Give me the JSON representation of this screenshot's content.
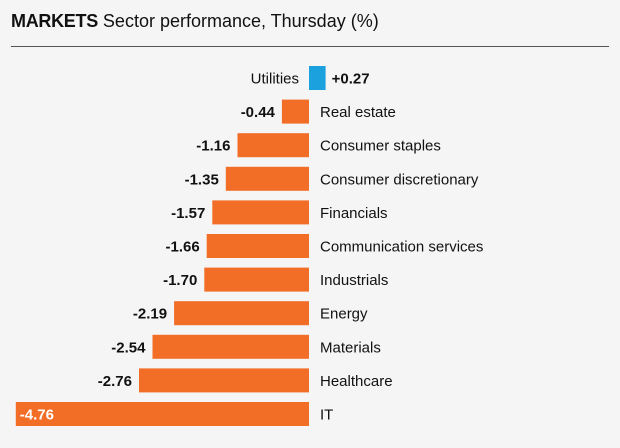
{
  "header": {
    "kicker": "MARKETS",
    "subtitle": "Sector performance, Thursday (%)"
  },
  "colors": {
    "positive": "#1aa1de",
    "negative": "#f26d26",
    "text": "#111111",
    "inside_label": "#ffffff"
  },
  "chart_data": {
    "type": "bar",
    "orientation": "horizontal",
    "title": "Sector performance, Thursday (%)",
    "categories": [
      "Utilities",
      "Real estate",
      "Consumer staples",
      "Consumer discretionary",
      "Financials",
      "Communication services",
      "Industrials",
      "Energy",
      "Materials",
      "Healthcare",
      "IT"
    ],
    "value_labels": [
      "+0.27",
      "-0.44",
      "-1.16",
      "-1.35",
      "-1.57",
      "-1.66",
      "-1.70",
      "-2.19",
      "-2.54",
      "-2.76",
      "-4.76"
    ],
    "values": [
      0.27,
      -0.44,
      -1.16,
      -1.35,
      -1.57,
      -1.66,
      -1.7,
      -2.19,
      -2.54,
      -2.76,
      -4.76
    ],
    "xlim": [
      -4.76,
      0.27
    ],
    "grid": false,
    "legend": "none"
  }
}
